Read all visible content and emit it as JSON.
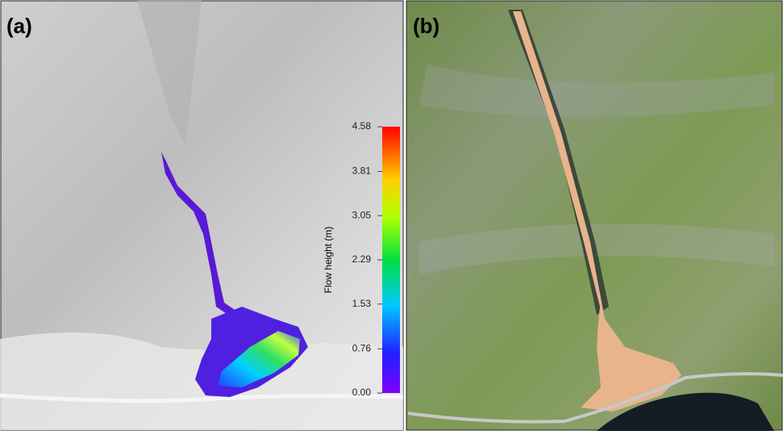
{
  "panels": [
    {
      "label": "(a)"
    },
    {
      "label": "(b)"
    }
  ],
  "colorbar": {
    "title": "Flow height (m)",
    "lim": [
      0,
      4.58
    ],
    "ticks": [
      {
        "value": 0,
        "label": "0.00"
      },
      {
        "value": 0.76,
        "label": "0.76"
      },
      {
        "value": 1.53,
        "label": "1.53"
      },
      {
        "value": 2.29,
        "label": "2.29"
      },
      {
        "value": 3.05,
        "label": "3.05"
      },
      {
        "value": 3.81,
        "label": "3.81"
      },
      {
        "value": 4.58,
        "label": "4.58"
      }
    ]
  }
}
